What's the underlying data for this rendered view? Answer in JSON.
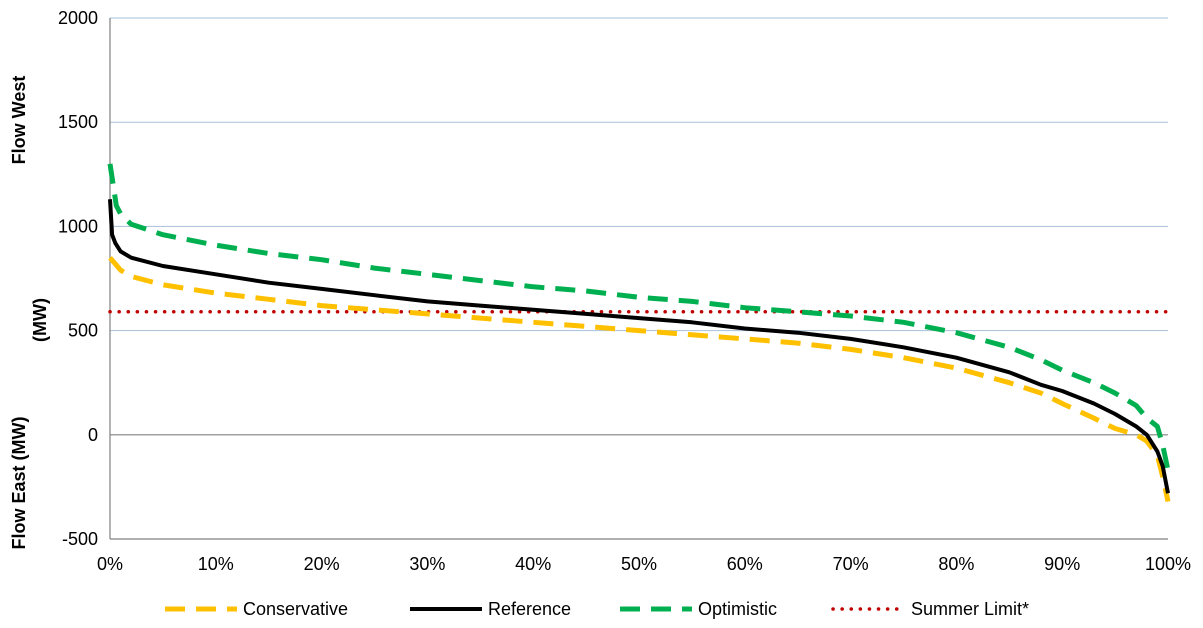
{
  "chart_data": {
    "type": "line",
    "title": "",
    "xlabel": "",
    "ylabel_top": "Flow West",
    "ylabel_mid": "(MW)",
    "ylabel_bottom": "Flow East (MW)",
    "xlim": [
      0,
      100
    ],
    "ylim": [
      -500,
      2000
    ],
    "x_ticks": [
      "0%",
      "10%",
      "20%",
      "30%",
      "40%",
      "50%",
      "60%",
      "70%",
      "80%",
      "90%",
      "100%"
    ],
    "y_ticks": [
      "-500",
      "0",
      "500",
      "1000",
      "1500",
      "2000"
    ],
    "grid": true,
    "legend_position": "bottom",
    "series": [
      {
        "name": "Conservative",
        "color": "#FFC000",
        "style": "dashed",
        "x": [
          0,
          0.5,
          1,
          2,
          5,
          10,
          15,
          20,
          25,
          30,
          35,
          40,
          45,
          50,
          55,
          60,
          65,
          70,
          75,
          80,
          85,
          88,
          90,
          93,
          95,
          97,
          98,
          99,
          99.5,
          100
        ],
        "y": [
          850,
          820,
          790,
          760,
          720,
          680,
          650,
          620,
          600,
          580,
          560,
          540,
          520,
          500,
          480,
          460,
          440,
          410,
          370,
          320,
          250,
          200,
          150,
          80,
          30,
          0,
          -30,
          -100,
          -200,
          -320
        ]
      },
      {
        "name": "Reference",
        "color": "#000000",
        "style": "solid",
        "x": [
          0,
          0.2,
          0.5,
          1,
          2,
          5,
          10,
          15,
          20,
          25,
          30,
          35,
          40,
          45,
          50,
          55,
          60,
          65,
          70,
          75,
          80,
          85,
          88,
          90,
          93,
          95,
          97,
          98,
          99,
          99.5,
          100
        ],
        "y": [
          1130,
          960,
          920,
          880,
          850,
          810,
          770,
          730,
          700,
          670,
          640,
          620,
          600,
          580,
          560,
          540,
          510,
          490,
          460,
          420,
          370,
          300,
          240,
          210,
          150,
          100,
          40,
          0,
          -80,
          -150,
          -280
        ]
      },
      {
        "name": "Optimistic",
        "color": "#00B050",
        "style": "dashed",
        "x": [
          0,
          0.3,
          0.6,
          1,
          2,
          5,
          10,
          15,
          20,
          25,
          30,
          35,
          40,
          45,
          50,
          55,
          60,
          65,
          70,
          75,
          80,
          85,
          88,
          90,
          93,
          95,
          97,
          98,
          99,
          99.5,
          100
        ],
        "y": [
          1300,
          1200,
          1100,
          1060,
          1010,
          960,
          910,
          870,
          840,
          800,
          770,
          740,
          710,
          690,
          660,
          640,
          610,
          590,
          570,
          540,
          490,
          420,
          360,
          310,
          250,
          200,
          140,
          80,
          40,
          -50,
          -170
        ]
      },
      {
        "name": "Summer Limit*",
        "color": "#C00000",
        "style": "dotted",
        "x": [
          0,
          100
        ],
        "y": [
          590,
          590
        ]
      }
    ]
  }
}
